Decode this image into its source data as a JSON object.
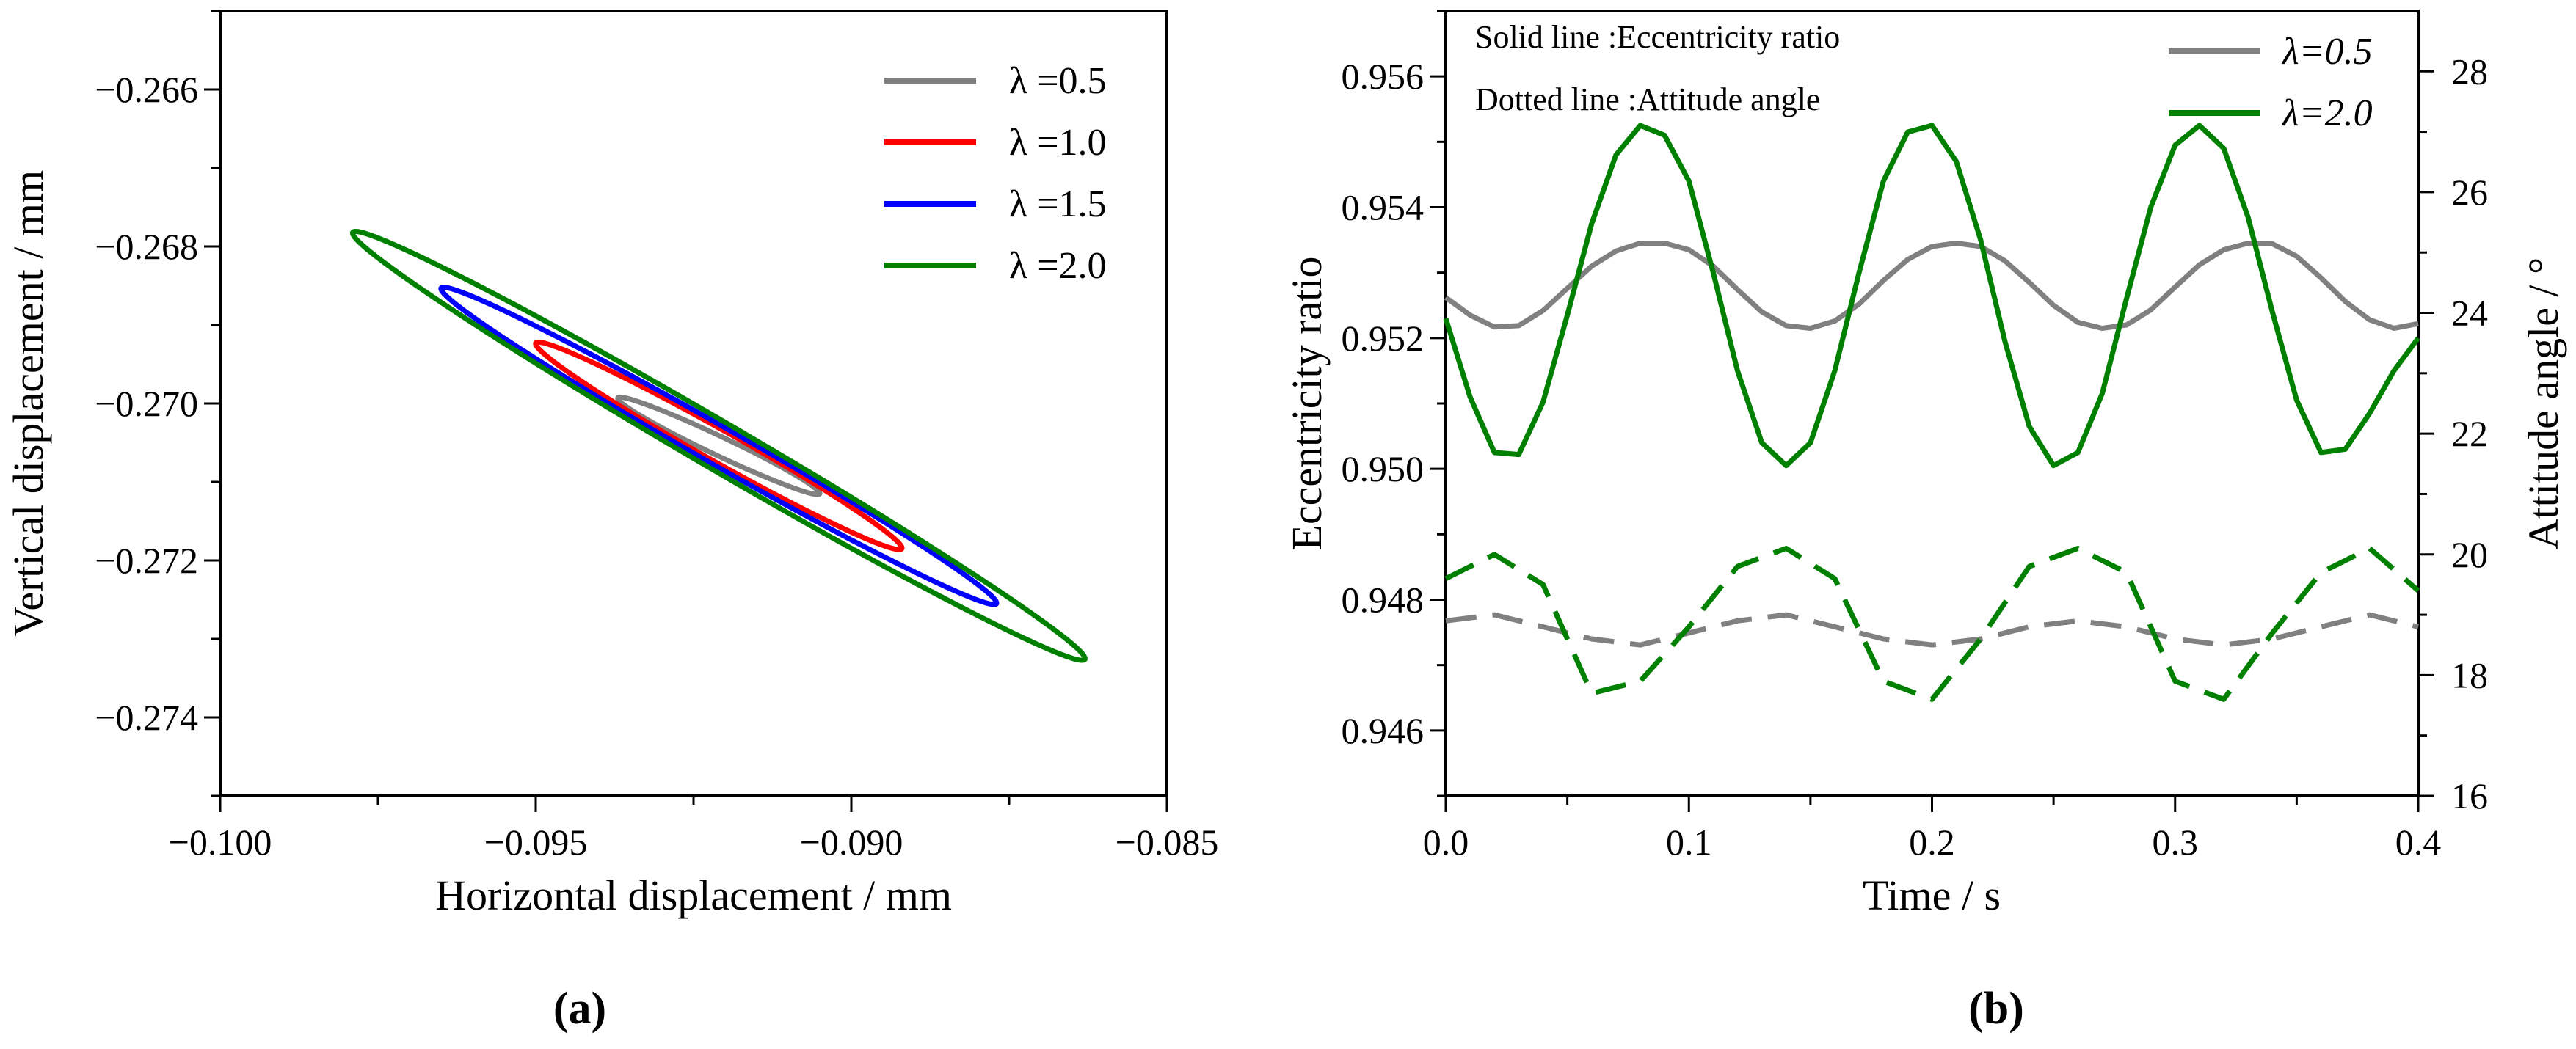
{
  "chart_data": [
    {
      "type": "line",
      "panel_label": "(a)",
      "xlabel": "Horizontal displacement / mm",
      "ylabel": "Vertical displacement / mm",
      "xlim": [
        -0.1,
        -0.085
      ],
      "ylim": [
        -0.275,
        -0.265
      ],
      "x_ticks": [
        "−0.100",
        "−0.095",
        "−0.090",
        "−0.085"
      ],
      "x_tick_values": [
        -0.1,
        -0.095,
        -0.09,
        -0.085
      ],
      "y_ticks": [
        "−0.266",
        "−0.268",
        "−0.270",
        "−0.272",
        "−0.274"
      ],
      "y_tick_values": [
        -0.266,
        -0.268,
        -0.27,
        -0.272,
        -0.274
      ],
      "legend_position": "top-right",
      "series": [
        {
          "name": "λ =0.5",
          "color": "#808080",
          "center": [
            -0.0921,
            -0.27054
          ],
          "endpoint": [
            -0.0937,
            -0.26993
          ],
          "minor_half_width": 0.00012
        },
        {
          "name": "λ =1.0",
          "color": "#ff0000",
          "center": [
            -0.0921,
            -0.27054
          ],
          "endpoint": [
            -0.095,
            -0.26923
          ],
          "minor_half_width": 0.0002
        },
        {
          "name": "λ =1.5",
          "color": "#0000ff",
          "center": [
            -0.0921,
            -0.27054
          ],
          "endpoint": [
            -0.0965,
            -0.26853
          ],
          "minor_half_width": 0.00024
        },
        {
          "name": "λ =2.0",
          "color": "#008000",
          "center": [
            -0.0921,
            -0.27054
          ],
          "endpoint": [
            -0.0979,
            -0.26782
          ],
          "minor_half_width": 0.0003
        }
      ]
    },
    {
      "type": "line",
      "panel_label": "(b)",
      "xlabel": "Time / s",
      "ylabel": "Eccentricity ratio",
      "ylabel_right": "Attitude angle / °",
      "xlim": [
        0.0,
        0.4
      ],
      "ylim": [
        0.945,
        0.957
      ],
      "ylim_right": [
        16,
        29
      ],
      "x_ticks": [
        "0.0",
        "0.1",
        "0.2",
        "0.3",
        "0.4"
      ],
      "x_tick_values": [
        0.0,
        0.1,
        0.2,
        0.3,
        0.4
      ],
      "y_ticks": [
        "0.946",
        "0.948",
        "0.950",
        "0.952",
        "0.954",
        "0.956"
      ],
      "y_tick_values": [
        0.946,
        0.948,
        0.95,
        0.952,
        0.954,
        0.956
      ],
      "y_ticks_right": [
        "16",
        "18",
        "20",
        "22",
        "24",
        "26",
        "28"
      ],
      "y_tick_values_right": [
        16,
        18,
        20,
        22,
        24,
        26,
        28
      ],
      "annotations": [
        "Solid line :Eccentricity ratio",
        "Dotted line :Attitude angle"
      ],
      "legend_position": "top-right",
      "series": [
        {
          "name": "λ=0.5",
          "color": "#808080",
          "style": "solid",
          "axis": "left",
          "x": [
            0.0,
            0.01,
            0.02,
            0.03,
            0.04,
            0.05,
            0.06,
            0.07,
            0.08,
            0.09,
            0.1,
            0.11,
            0.12,
            0.13,
            0.14,
            0.15,
            0.16,
            0.17,
            0.18,
            0.19,
            0.2,
            0.21,
            0.22,
            0.23,
            0.24,
            0.25,
            0.26,
            0.27,
            0.28,
            0.29,
            0.3,
            0.31,
            0.32,
            0.33,
            0.34,
            0.35,
            0.36,
            0.37,
            0.38,
            0.39,
            0.4
          ],
          "values": [
            0.95262,
            0.95235,
            0.95217,
            0.95219,
            0.95242,
            0.95276,
            0.9531,
            0.95333,
            0.95345,
            0.95345,
            0.95335,
            0.9531,
            0.95274,
            0.9524,
            0.95219,
            0.95215,
            0.95226,
            0.95252,
            0.95288,
            0.9532,
            0.9534,
            0.95345,
            0.9534,
            0.95318,
            0.95285,
            0.9525,
            0.95224,
            0.95215,
            0.9522,
            0.95243,
            0.95278,
            0.95312,
            0.95335,
            0.95345,
            0.95344,
            0.95325,
            0.95292,
            0.95256,
            0.95228,
            0.95215,
            0.95222
          ]
        },
        {
          "name": "λ=2.0",
          "color": "#008000",
          "style": "solid",
          "axis": "left",
          "x": [
            0.0,
            0.01,
            0.02,
            0.03,
            0.04,
            0.05,
            0.06,
            0.07,
            0.08,
            0.09,
            0.1,
            0.11,
            0.12,
            0.13,
            0.14,
            0.15,
            0.16,
            0.17,
            0.18,
            0.19,
            0.2,
            0.21,
            0.22,
            0.23,
            0.24,
            0.25,
            0.26,
            0.27,
            0.28,
            0.29,
            0.3,
            0.31,
            0.32,
            0.33,
            0.34,
            0.35,
            0.36,
            0.37,
            0.38,
            0.39,
            0.4
          ],
          "values": [
            0.9523,
            0.9511,
            0.95025,
            0.95022,
            0.95102,
            0.95235,
            0.95375,
            0.9548,
            0.95525,
            0.9551,
            0.9544,
            0.953,
            0.9515,
            0.9504,
            0.95005,
            0.9504,
            0.9515,
            0.953,
            0.9544,
            0.95515,
            0.95525,
            0.9547,
            0.9535,
            0.95195,
            0.95065,
            0.95005,
            0.95025,
            0.95115,
            0.9526,
            0.954,
            0.95495,
            0.95525,
            0.9549,
            0.95385,
            0.9524,
            0.95105,
            0.95025,
            0.9503,
            0.95085,
            0.9515,
            0.952
          ]
        },
        {
          "name": "λ=0.5",
          "color": "#808080",
          "style": "dashed",
          "axis": "right",
          "x": [
            0.0,
            0.02,
            0.04,
            0.06,
            0.08,
            0.1,
            0.12,
            0.14,
            0.16,
            0.18,
            0.2,
            0.22,
            0.24,
            0.26,
            0.28,
            0.3,
            0.32,
            0.34,
            0.36,
            0.38,
            0.4
          ],
          "values": [
            18.9,
            19.0,
            18.8,
            18.6,
            18.5,
            18.7,
            18.9,
            19.0,
            18.8,
            18.6,
            18.5,
            18.6,
            18.8,
            18.9,
            18.8,
            18.6,
            18.5,
            18.6,
            18.8,
            19.0,
            18.8
          ]
        },
        {
          "name": "λ=2.0",
          "color": "#008000",
          "style": "dashed",
          "axis": "right",
          "x": [
            0.0,
            0.02,
            0.04,
            0.06,
            0.08,
            0.1,
            0.12,
            0.14,
            0.16,
            0.18,
            0.2,
            0.22,
            0.24,
            0.26,
            0.28,
            0.3,
            0.32,
            0.34,
            0.36,
            0.38,
            0.4
          ],
          "values": [
            19.6,
            20.0,
            19.5,
            17.7,
            17.9,
            18.8,
            19.8,
            20.1,
            19.6,
            17.9,
            17.6,
            18.6,
            19.8,
            20.1,
            19.7,
            17.9,
            17.6,
            18.7,
            19.7,
            20.1,
            19.4
          ]
        }
      ]
    }
  ]
}
